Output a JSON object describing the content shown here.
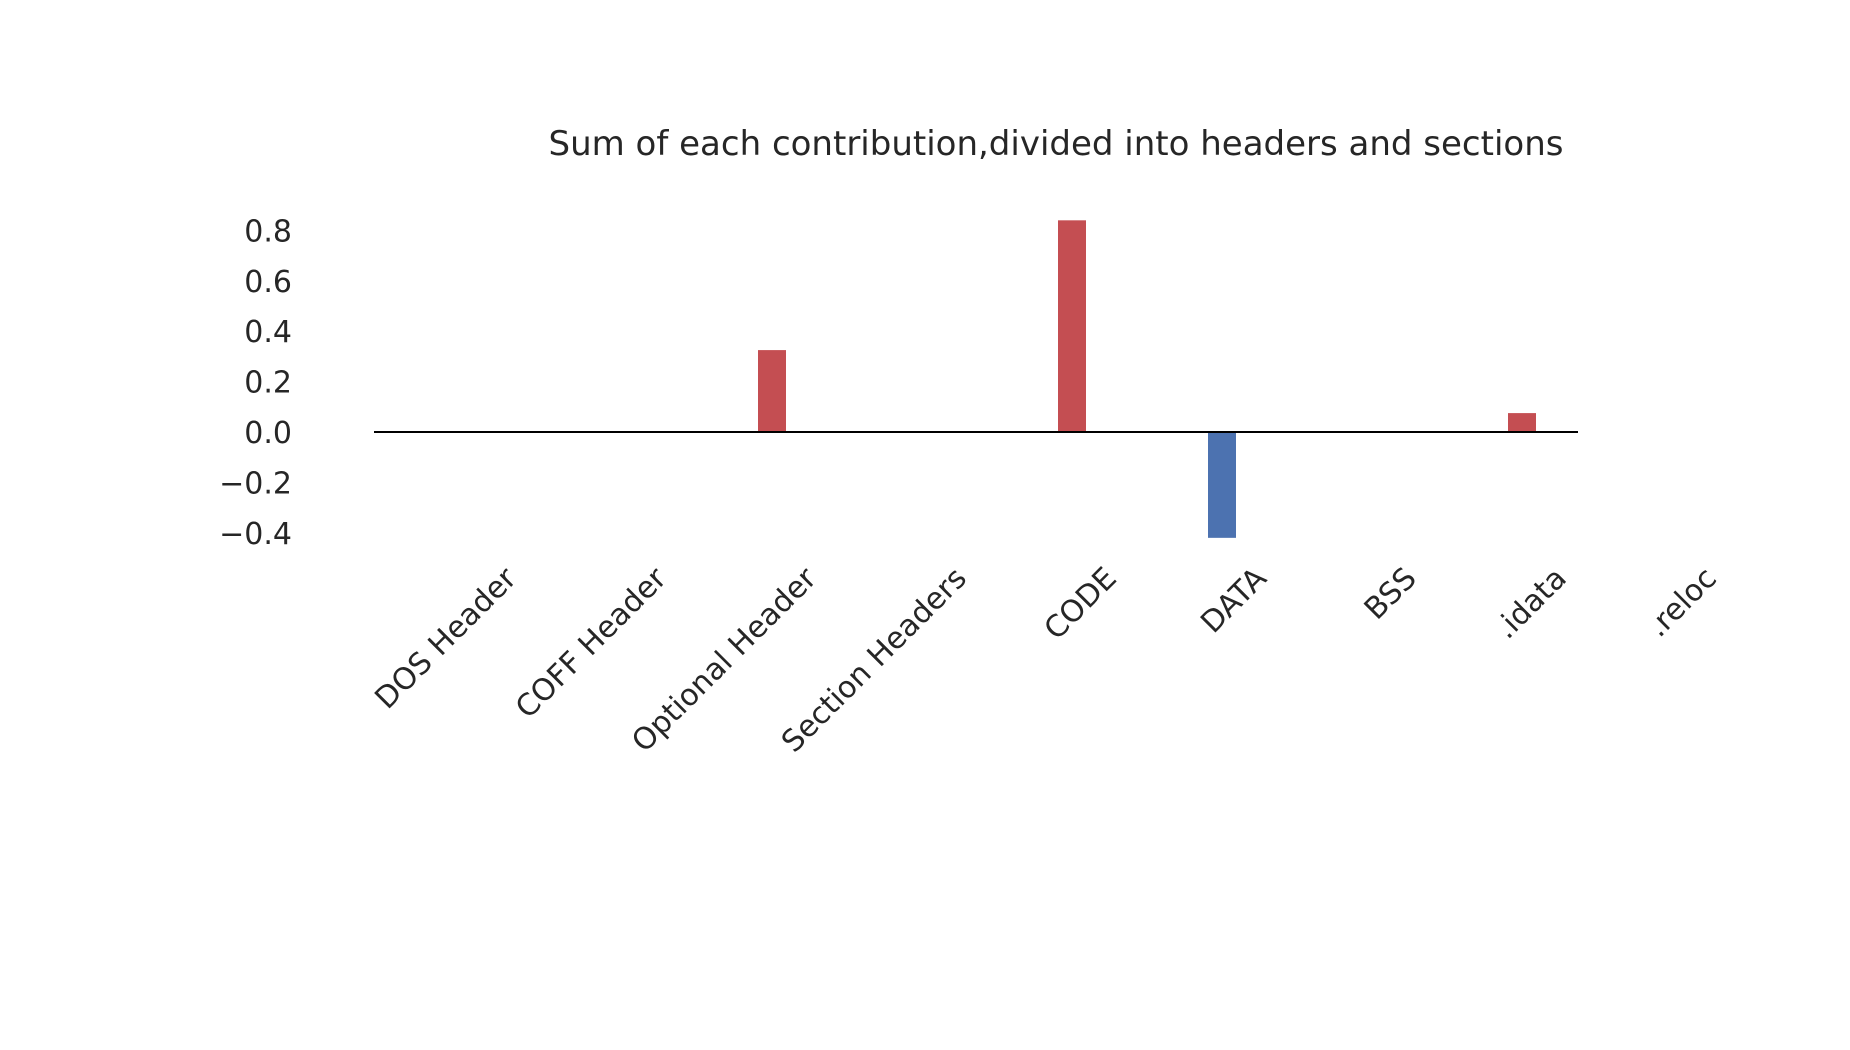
{
  "chart_data": {
    "type": "bar",
    "title": "Sum of each contribution,divided into headers and sections",
    "xlabel": "",
    "ylabel": "",
    "categories": [
      "DOS Header",
      "COFF Header",
      "Optional Header",
      "Section Headers",
      "CODE",
      "DATA",
      "BSS",
      ".idata",
      ".reloc"
    ],
    "values": [
      0.0,
      0.003,
      0.325,
      0.0,
      0.84,
      -0.42,
      0.0,
      0.075,
      0.0
    ],
    "ylim": [
      -0.45,
      0.88
    ],
    "yticks": [
      -0.4,
      -0.2,
      0.0,
      0.2,
      0.4,
      0.6,
      0.8
    ],
    "ytick_labels": [
      "−0.4",
      "−0.2",
      "0.0",
      "0.2",
      "0.4",
      "0.6",
      "0.8"
    ],
    "grid": false,
    "colors": {
      "positive": "#c44e52",
      "negative": "#4c72b0",
      "baseline": "#000000",
      "text": "#262626"
    }
  }
}
